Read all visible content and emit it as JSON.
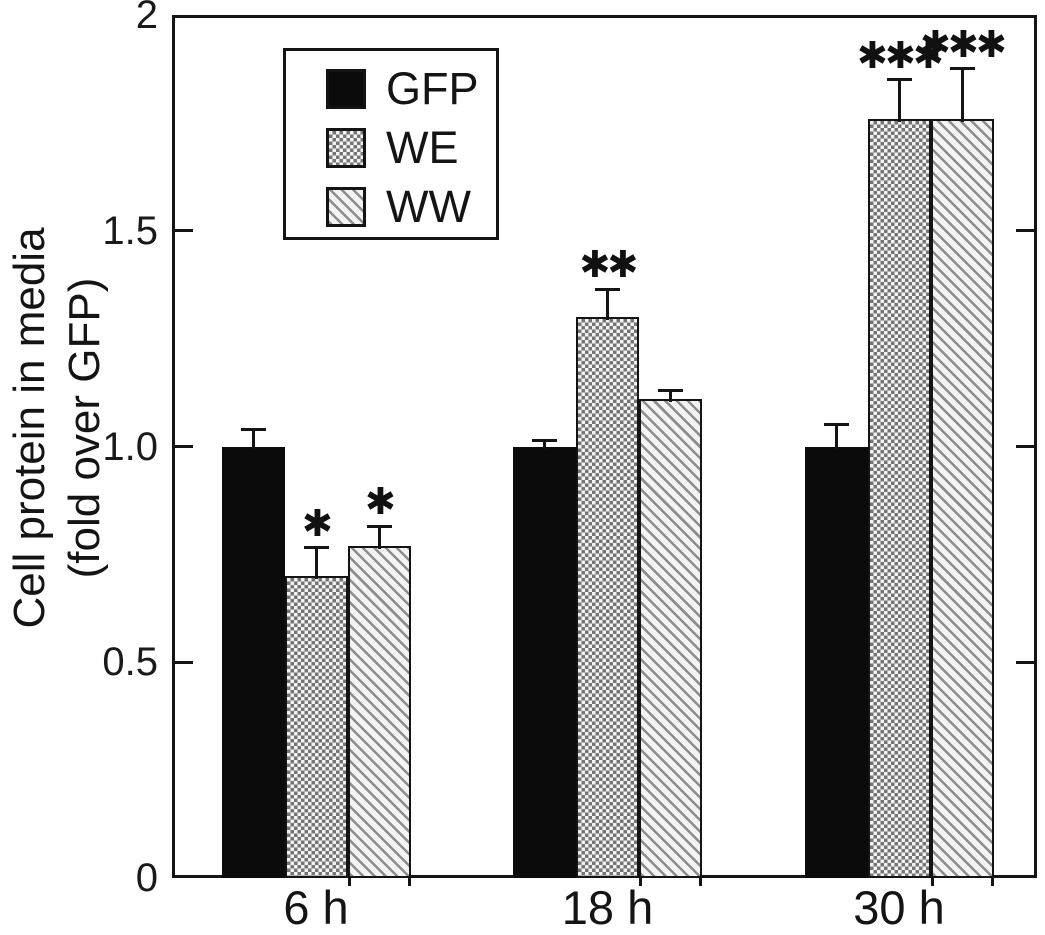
{
  "figure": {
    "background_color": "#ffffff",
    "ink_color": "#141414"
  },
  "chart_data": {
    "type": "bar",
    "title": "",
    "ylabel_lines": [
      "Cell protein in media",
      "(fold over GFP)"
    ],
    "xlabel": "",
    "categories": [
      "6 h",
      "18 h",
      "30 h"
    ],
    "series": [
      {
        "name": "GFP",
        "pattern": "solid-black",
        "values": [
          1.0,
          1.0,
          1.0
        ],
        "errors": [
          0.04,
          0.015,
          0.05
        ],
        "significance": [
          "",
          "",
          ""
        ]
      },
      {
        "name": "WE",
        "pattern": "checkerboard",
        "values": [
          0.7,
          1.3,
          1.76
        ],
        "errors": [
          0.065,
          0.065,
          0.09
        ],
        "significance": [
          "*",
          "**",
          "***"
        ]
      },
      {
        "name": "WW",
        "pattern": "diagonal-hatch",
        "values": [
          0.77,
          1.11,
          1.76
        ],
        "errors": [
          0.045,
          0.02,
          0.115
        ],
        "significance": [
          "*",
          "",
          "***"
        ]
      }
    ],
    "ylim": [
      0,
      2
    ],
    "yticks": [
      0,
      0.5,
      1.0,
      1.5,
      2
    ],
    "ytick_labels": [
      "0",
      "0.5",
      "1.0",
      "1.5",
      "2"
    ],
    "grid": false,
    "error_bars": "upper-only",
    "significance_marker": "✱",
    "legend_position": "upper-left-inside",
    "bar_outline_color": "#141414",
    "bar_fill_black": "#0b0b0b"
  }
}
